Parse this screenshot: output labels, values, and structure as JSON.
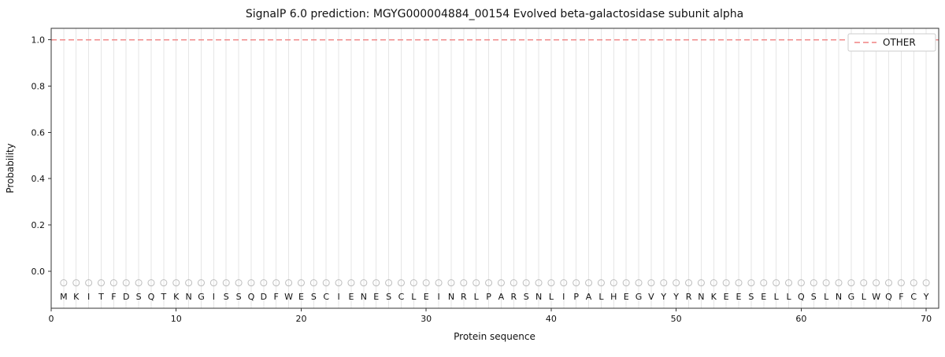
{
  "chart_data": {
    "type": "line",
    "title": "SignalP 6.0 prediction: MGYG000004884_00154 Evolved beta-galactosidase subunit alpha",
    "xlabel": "Protein sequence",
    "ylabel": "Probability",
    "xlim": [
      0,
      71
    ],
    "ylim": [
      -0.16,
      1.05
    ],
    "x_ticks": [
      0,
      10,
      20,
      30,
      40,
      50,
      60,
      70
    ],
    "y_ticks": [
      0.0,
      0.2,
      0.4,
      0.6,
      0.8,
      1.0
    ],
    "grid": {
      "vertical_per_residue": true,
      "horizontal": false
    },
    "sequence": "MKITFDSQTKNGISSQDFWESCIENESCLEINRLPARSNLIPALHEGVYYRNKEESELLQSLNGLWQFCY",
    "residue_marker": {
      "shape": "circle",
      "y": -0.05
    },
    "series": [
      {
        "name": "OTHER",
        "style": "dashed",
        "color": "#f08080",
        "constant_value": 1.0
      }
    ],
    "legend": {
      "position": "upper-right",
      "entries": [
        "OTHER"
      ]
    },
    "colors": {
      "grid": "#e6e6e6",
      "marker": "#bdbdbd",
      "letter": "#262626",
      "spine": "#333333",
      "tick_label": "#111111",
      "legend_border": "#cccccc"
    }
  }
}
